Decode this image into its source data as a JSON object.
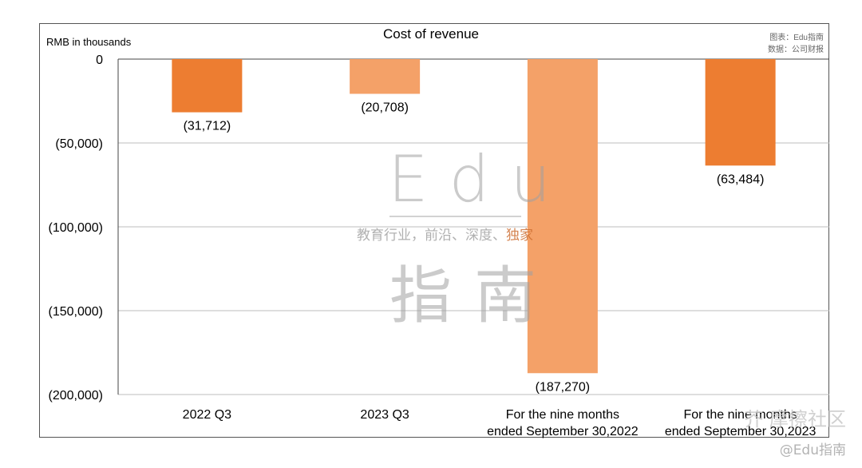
{
  "chart_data": {
    "type": "bar",
    "title": "Cost of revenue",
    "ylabel": "RMB in thousands",
    "ylim": [
      -200000,
      0
    ],
    "yticks": [
      0,
      -50000,
      -100000,
      -150000,
      -200000
    ],
    "ytick_labels": [
      "0",
      "(50,000)",
      "(100,000)",
      "(150,000)",
      "(200,000)"
    ],
    "grid": true,
    "categories": [
      [
        "2022 Q3"
      ],
      [
        "2023 Q3"
      ],
      [
        "For the nine months",
        "ended September 30,2022"
      ],
      [
        "For the nine months",
        "ended September 30,2023"
      ]
    ],
    "values": [
      -31712,
      -20708,
      -187270,
      -63484
    ],
    "value_labels": [
      "(31,712)",
      "(20,708)",
      "(187,270)",
      "(63,484)"
    ],
    "bar_colors": [
      "#ED7D31",
      "#F4A168",
      "#F4A168",
      "#ED7D31"
    ]
  },
  "source": {
    "line1": "图表：Edu指南",
    "line2": "数据：公司财报"
  },
  "watermark": {
    "edu": "Edu",
    "tagline_main": "教育行业，前沿、深度、",
    "tagline_accent": "独家",
    "zh": "指南",
    "corner1": "芥 摩擦社区",
    "corner2": "@Edu指南"
  }
}
